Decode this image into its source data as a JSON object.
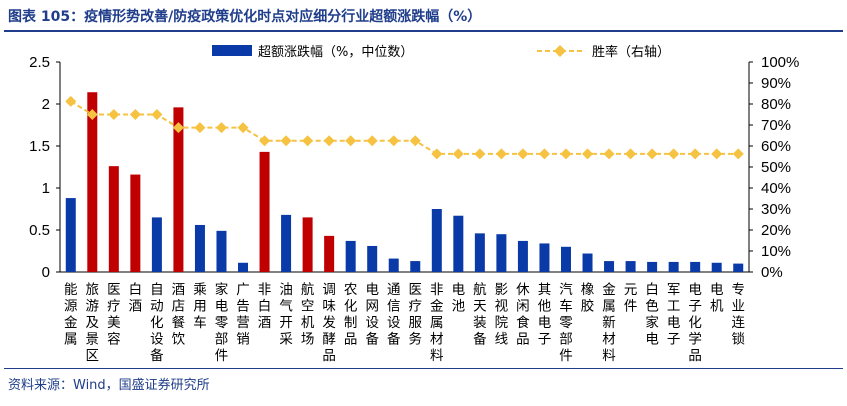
{
  "header": {
    "title": "图表 105：疫情形势改善/防疫政策优化时点对应细分行业超额涨跌幅（%）"
  },
  "footer": {
    "source": "资料来源：Wind，国盛证券研究所"
  },
  "colors": {
    "bar_default": "#0a3aa8",
    "bar_highlight": "#c00000",
    "line": "#f5c242",
    "rule": "#1f3d8a"
  },
  "chart_data": {
    "type": "bar",
    "title": "",
    "legend": {
      "bar_label": "超额涨跌幅（%，中位数）",
      "line_label": "胜率（右轴）",
      "placement": "top"
    },
    "categories": [
      "能源金属",
      "旅游及景区",
      "医疗美容",
      "白酒",
      "自动化设备",
      "酒店餐饮",
      "乘用车",
      "家电零部件",
      "广告营销",
      "非白酒",
      "油气开采",
      "航空机场",
      "调味发酵品",
      "农化制品",
      "电网设备",
      "通信设备",
      "医疗服务",
      "非金属材料",
      "电池",
      "航天装备",
      "影视院线",
      "休闲食品",
      "其他电子",
      "汽车零部件",
      "橡胶",
      "金属新材料",
      "元件",
      "白色家电",
      "军工电子",
      "电子化学品",
      "电机",
      "专业连锁"
    ],
    "series": [
      {
        "name": "超额涨跌幅（%，中位数）",
        "kind": "bar",
        "axis": "left",
        "values": [
          0.88,
          2.14,
          1.26,
          1.16,
          0.65,
          1.96,
          0.56,
          0.49,
          0.11,
          1.43,
          0.68,
          0.65,
          0.43,
          0.37,
          0.31,
          0.16,
          0.13,
          0.75,
          0.67,
          0.46,
          0.45,
          0.37,
          0.34,
          0.3,
          0.22,
          0.13,
          0.13,
          0.12,
          0.12,
          0.12,
          0.11,
          0.1
        ],
        "highlight": [
          false,
          true,
          true,
          true,
          false,
          true,
          false,
          false,
          false,
          true,
          false,
          true,
          true,
          false,
          false,
          false,
          false,
          false,
          false,
          false,
          false,
          false,
          false,
          false,
          false,
          false,
          false,
          false,
          false,
          false,
          false,
          false
        ]
      },
      {
        "name": "胜率（右轴）",
        "kind": "line",
        "axis": "right",
        "values": [
          0.8125,
          0.75,
          0.75,
          0.75,
          0.75,
          0.6875,
          0.6875,
          0.6875,
          0.6875,
          0.625,
          0.625,
          0.625,
          0.625,
          0.625,
          0.625,
          0.625,
          0.625,
          0.5625,
          0.5625,
          0.5625,
          0.5625,
          0.5625,
          0.5625,
          0.5625,
          0.5625,
          0.5625,
          0.5625,
          0.5625,
          0.5625,
          0.5625,
          0.5625,
          0.5625
        ]
      }
    ],
    "y_left": {
      "ylim": [
        0,
        2.5
      ],
      "ticks": [
        0,
        0.5,
        1,
        1.5,
        2,
        2.5
      ],
      "tick_labels": [
        "0",
        "0.5",
        "1",
        "1.5",
        "2",
        "2.5"
      ]
    },
    "y_right": {
      "ylim": [
        0,
        1
      ],
      "ticks": [
        0,
        0.1,
        0.2,
        0.3,
        0.4,
        0.5,
        0.6,
        0.7,
        0.8,
        0.9,
        1
      ],
      "tick_labels": [
        "0%",
        "10%",
        "20%",
        "30%",
        "40%",
        "50%",
        "60%",
        "70%",
        "80%",
        "90%",
        "100%"
      ]
    },
    "xlabel": "",
    "ylabel": "",
    "grid": false
  }
}
